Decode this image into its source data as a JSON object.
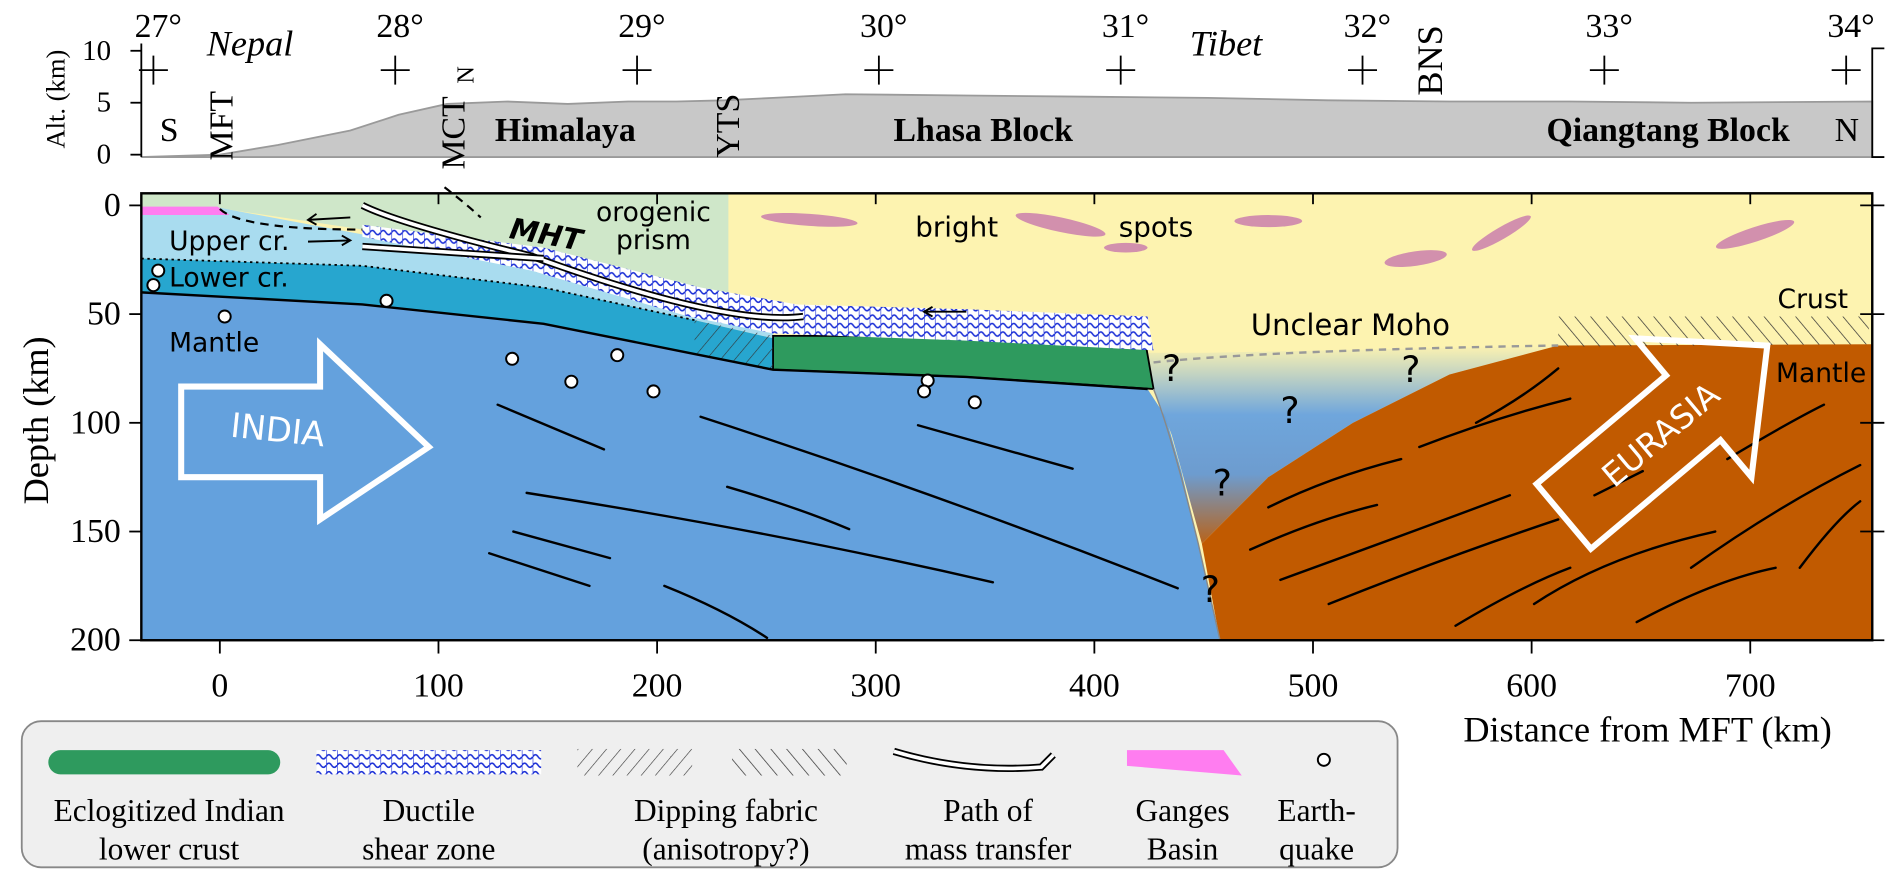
{
  "top_panel": {
    "longitudes": [
      "27°",
      "28°",
      "29°",
      "30°",
      "31°",
      "32°",
      "33°",
      "34°"
    ],
    "countries": [
      "Nepal",
      "Tibet"
    ],
    "altitude_axis": {
      "label": "Alt. (km)",
      "ticks": [
        0,
        5,
        10
      ]
    },
    "south": "S",
    "north": "N",
    "faults": {
      "mft": "MFT",
      "mct": "MCT",
      "mct_sub": "N",
      "yts": "YTS",
      "bns": "BNS"
    },
    "regions": [
      "Himalaya",
      "Lhasa Block",
      "Qiangtang Block"
    ]
  },
  "section": {
    "depth_axis": {
      "label": "Depth (km)",
      "ticks": [
        0,
        50,
        100,
        150,
        200
      ]
    },
    "distance_axis": {
      "label": "Distance from MFT (km)",
      "ticks": [
        0,
        100,
        200,
        300,
        400,
        500,
        600,
        700
      ]
    },
    "labels": {
      "prism": [
        "orogenic",
        "prism"
      ],
      "mht": "MHT",
      "upper_crust": "Upper cr.",
      "lower_crust": "Lower cr.",
      "india_mantle": "Mantle",
      "india": "INDIA",
      "bright": "bright",
      "spots": "spots",
      "moho": "Unclear Moho",
      "crust": "Crust",
      "eurasia_mantle": "Mantle",
      "eurasia": "EURASIA",
      "unknowns": [
        "?",
        "?",
        "?",
        "?",
        "?"
      ]
    }
  },
  "legend": [
    {
      "label": [
        "Eclogitized Indian",
        "lower crust"
      ]
    },
    {
      "label": [
        "Ductile",
        "shear zone"
      ]
    },
    {
      "label": [
        "Dipping fabric",
        "(anisotropy?)"
      ]
    },
    {
      "label": [
        "Path of",
        "mass transfer"
      ]
    },
    {
      "label": [
        "Ganges",
        "Basin"
      ]
    },
    {
      "label": [
        "Earth-",
        "quake"
      ]
    }
  ]
}
